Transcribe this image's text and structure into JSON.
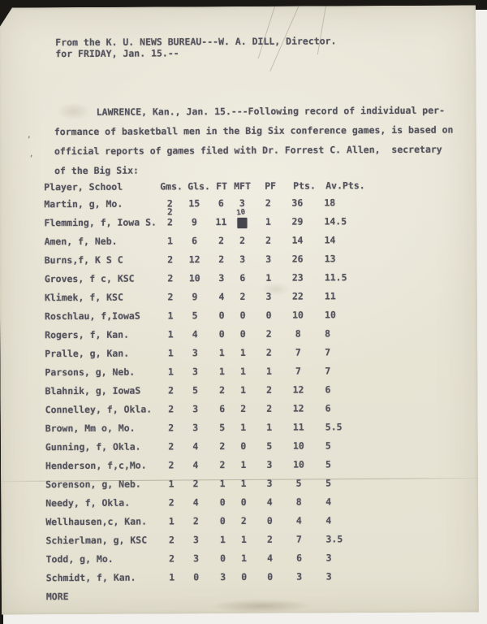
{
  "colors": {
    "paper": "#e9e5d6",
    "ink": "#53525c",
    "background_dark": "#1a1916",
    "background_light": "#f1f0ec"
  },
  "document": {
    "from_line": "From the K. U. NEWS BUREAU---W. A. DILL, Director.",
    "date_line": "for FRIDAY, Jan. 15.--",
    "body_lines": [
      "LAWRENCE, Kan., Jan. 15.---Following record of individual per-",
      "formance of basketball men in the Big Six conference games, is based on",
      "official reports of games filed with Dr. Forrest C. Allen,  secretary",
      "of the Big Six:"
    ],
    "footer": "MORE"
  },
  "table": {
    "columns": [
      "Player, School",
      "Gms.",
      "Gls.",
      "FT",
      "MFT",
      "PF",
      "Pts.",
      "Av.Pts."
    ],
    "rows": [
      {
        "player": "Martin, g, Mo.",
        "gms": "2",
        "gls": "15",
        "ft": "6",
        "mft": "3",
        "pf": "2",
        "pts": "36",
        "avpts": "18"
      },
      {
        "player": "Flemming, f, Iowa S.",
        "gms": "2",
        "gls": "9",
        "ft": "11",
        "mft": "2",
        "pf": "1",
        "pts": "29",
        "avpts": "14.5",
        "corrections": {
          "gms_above": "2",
          "mft_above": "10",
          "mft_struck": true
        }
      },
      {
        "player": "Amen, f, Neb.",
        "gms": "1",
        "gls": "6",
        "ft": "2",
        "mft": "2",
        "pf": "2",
        "pts": "14",
        "avpts": "14"
      },
      {
        "player": "Burns,f, K S C",
        "gms": "2",
        "gls": "12",
        "ft": "2",
        "mft": "3",
        "pf": "3",
        "pts": "26",
        "avpts": "13"
      },
      {
        "player": "Groves, f c, KSC",
        "gms": "2",
        "gls": "10",
        "ft": "3",
        "mft": "6",
        "pf": "1",
        "pts": "23",
        "avpts": "11.5"
      },
      {
        "player": "Klimek, f, KSC",
        "gms": "2",
        "gls": "9",
        "ft": "4",
        "mft": "2",
        "pf": "3",
        "pts": "22",
        "avpts": "11"
      },
      {
        "player": "Roschlau, f,IowaS",
        "gms": "1",
        "gls": "5",
        "ft": "0",
        "mft": "0",
        "pf": "0",
        "pts": "10",
        "avpts": "10"
      },
      {
        "player": "Rogers, f, Kan.",
        "gms": "1",
        "gls": "4",
        "ft": "0",
        "mft": "0",
        "pf": "2",
        "pts": "8",
        "avpts": "8"
      },
      {
        "player": "Pralle, g, Kan.",
        "gms": "1",
        "gls": "3",
        "ft": "1",
        "mft": "1",
        "pf": "2",
        "pts": "7",
        "avpts": "7"
      },
      {
        "player": "Parsons, g, Neb.",
        "gms": "1",
        "gls": "3",
        "ft": "1",
        "mft": "1",
        "pf": "1",
        "pts": "7",
        "avpts": "7"
      },
      {
        "player": "Blahnik, g, IowaS",
        "gms": "2",
        "gls": "5",
        "ft": "2",
        "mft": "1",
        "pf": "2",
        "pts": "12",
        "avpts": "6"
      },
      {
        "player": "Connelley, f, Okla.",
        "gms": "2",
        "gls": "3",
        "ft": "6",
        "mft": "2",
        "pf": "2",
        "pts": "12",
        "avpts": "6"
      },
      {
        "player": "Brown, Mm o, Mo.",
        "gms": "2",
        "gls": "3",
        "ft": "5",
        "mft": "1",
        "pf": "1",
        "pts": "11",
        "avpts": "5.5"
      },
      {
        "player": "Gunning, f, Okla.",
        "gms": "2",
        "gls": "4",
        "ft": "2",
        "mft": "0",
        "pf": "5",
        "pts": "10",
        "avpts": "5"
      },
      {
        "player": "Henderson, f,c,Mo.",
        "gms": "2",
        "gls": "4",
        "ft": "2",
        "mft": "1",
        "pf": "3",
        "pts": "10",
        "avpts": "5"
      },
      {
        "player": "Sorenson, g, Neb.",
        "gms": "1",
        "gls": "2",
        "ft": "1",
        "mft": "1",
        "pf": "3",
        "pts": "5",
        "avpts": "5"
      },
      {
        "player": "Needy, f, Okla.",
        "gms": "2",
        "gls": "4",
        "ft": "0",
        "mft": "0",
        "pf": "4",
        "pts": "8",
        "avpts": "4"
      },
      {
        "player": "Wellhausen,c, Kan.",
        "gms": "1",
        "gls": "2",
        "ft": "0",
        "mft": "2",
        "pf": "0",
        "pts": "4",
        "avpts": "4"
      },
      {
        "player": "Schierlman, g, KSC",
        "gms": "2",
        "gls": "3",
        "ft": "1",
        "mft": "1",
        "pf": "2",
        "pts": "7",
        "avpts": "3.5"
      },
      {
        "player": "Todd, g, Mo.",
        "gms": "2",
        "gls": "3",
        "ft": "0",
        "mft": "1",
        "pf": "4",
        "pts": "6",
        "avpts": "3"
      },
      {
        "player": "Schmidt, f, Kan.",
        "gms": "1",
        "gls": "0",
        "ft": "3",
        "mft": "0",
        "pf": "0",
        "pts": "3",
        "avpts": "3"
      }
    ]
  }
}
